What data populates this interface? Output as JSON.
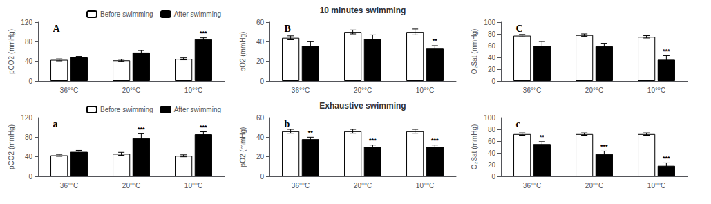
{
  "chart_data": [
    {
      "type": "bar",
      "panel_label": "A",
      "ylabel": "pCO2 (mmHg)",
      "categories": [
        "36°°C",
        "20°°C",
        "10°°C"
      ],
      "series": [
        {
          "name": "Before swimming",
          "color": "#ffffff",
          "values": [
            43,
            42,
            45
          ],
          "errors": [
            2,
            2,
            2
          ]
        },
        {
          "name": "After swimming",
          "color": "#000000",
          "values": [
            48,
            58,
            85
          ],
          "errors": [
            2,
            4,
            3
          ]
        }
      ],
      "ylim": [
        0,
        120
      ],
      "yticks": [
        0,
        40,
        80,
        120
      ],
      "grid": false,
      "legend": "upper right",
      "annotations": [
        {
          "text": "***",
          "category": "10°°C",
          "series": "After swimming"
        }
      ]
    },
    {
      "type": "bar",
      "title": "10 minutes swimming",
      "panel_label": "B",
      "ylabel": "pO2 (mmHg)",
      "categories": [
        "36°°C",
        "20°°C",
        "10°°C"
      ],
      "series": [
        {
          "name": "Before swimming",
          "color": "#ffffff",
          "values": [
            44,
            50,
            50
          ],
          "errors": [
            2,
            2,
            3
          ]
        },
        {
          "name": "After swimming",
          "color": "#000000",
          "values": [
            36,
            43,
            33
          ],
          "errors": [
            4,
            4,
            3
          ]
        }
      ],
      "ylim": [
        0,
        60
      ],
      "yticks": [
        0,
        20,
        40,
        60
      ],
      "grid": false,
      "annotations": [
        {
          "text": "**",
          "category": "10°°C",
          "series": "After swimming"
        }
      ]
    },
    {
      "type": "bar",
      "panel_label": "C",
      "ylabel": "O₂Sat (mmHg)",
      "categories": [
        "36°°C",
        "20°°C",
        "10°°C"
      ],
      "series": [
        {
          "name": "Before swimming",
          "color": "#ffffff",
          "values": [
            77,
            78,
            75
          ],
          "errors": [
            2,
            2,
            2
          ]
        },
        {
          "name": "After swimming",
          "color": "#000000",
          "values": [
            60,
            59,
            36
          ],
          "errors": [
            7,
            5,
            7
          ]
        }
      ],
      "ylim": [
        0,
        100
      ],
      "yticks": [
        0,
        20,
        40,
        60,
        80,
        100
      ],
      "grid": false,
      "annotations": [
        {
          "text": "***",
          "category": "10°°C",
          "series": "After swimming"
        }
      ]
    },
    {
      "type": "bar",
      "panel_label": "a",
      "ylabel": "pCO2 (mmHg)",
      "categories": [
        "36°°C",
        "20°°C",
        "10°°C"
      ],
      "series": [
        {
          "name": "Before swimming",
          "color": "#ffffff",
          "values": [
            43,
            46,
            42
          ],
          "errors": [
            2,
            3,
            2
          ]
        },
        {
          "name": "After swimming",
          "color": "#000000",
          "values": [
            50,
            78,
            86
          ],
          "errors": [
            3,
            9,
            5
          ]
        }
      ],
      "ylim": [
        0,
        120
      ],
      "yticks": [
        0,
        40,
        80,
        120
      ],
      "grid": false,
      "legend": "upper right",
      "annotations": [
        {
          "text": "***",
          "category": "20°°C",
          "series": "After swimming"
        },
        {
          "text": "***",
          "category": "10°°C",
          "series": "After swimming"
        }
      ]
    },
    {
      "type": "bar",
      "title": "Exhaustive swimming",
      "panel_label": "b",
      "ylabel": "pO2 (mmHg)",
      "categories": [
        "36°°C",
        "20°°C",
        "10°°C"
      ],
      "series": [
        {
          "name": "Before swimming",
          "color": "#ffffff",
          "values": [
            46,
            46,
            46
          ],
          "errors": [
            2,
            2,
            2
          ]
        },
        {
          "name": "After swimming",
          "color": "#000000",
          "values": [
            38,
            30,
            30
          ],
          "errors": [
            2,
            2,
            2
          ]
        }
      ],
      "ylim": [
        0,
        60
      ],
      "yticks": [
        0,
        20,
        40,
        60
      ],
      "grid": false,
      "annotations": [
        {
          "text": "**",
          "category": "36°°C",
          "series": "After swimming"
        },
        {
          "text": "***",
          "category": "20°°C",
          "series": "After swimming"
        },
        {
          "text": "***",
          "category": "10°°C",
          "series": "After swimming"
        }
      ]
    },
    {
      "type": "bar",
      "panel_label": "c",
      "ylabel": "O₂Sat (mmHg)",
      "categories": [
        "36°°C",
        "20°°C",
        "10°°C"
      ],
      "series": [
        {
          "name": "Before swimming",
          "color": "#ffffff",
          "values": [
            72,
            72,
            72
          ],
          "errors": [
            2,
            2,
            2
          ]
        },
        {
          "name": "After swimming",
          "color": "#000000",
          "values": [
            55,
            38,
            18
          ],
          "errors": [
            4,
            5,
            5
          ]
        }
      ],
      "ylim": [
        0,
        100
      ],
      "yticks": [
        0,
        20,
        40,
        60,
        80,
        100
      ],
      "grid": false,
      "annotations": [
        {
          "text": "**",
          "category": "36°°C",
          "series": "After swimming"
        },
        {
          "text": "***",
          "category": "20°°C",
          "series": "After swimming"
        },
        {
          "text": "***",
          "category": "10°°C",
          "series": "After swimming"
        }
      ]
    }
  ]
}
